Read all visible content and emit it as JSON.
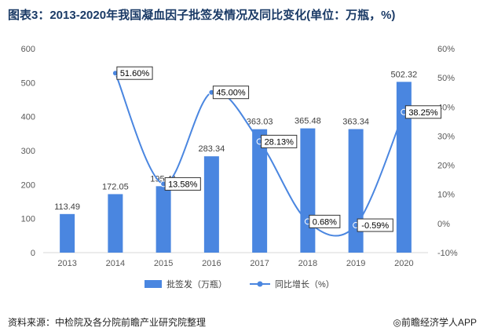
{
  "title": "图表3：2013-2020年我国凝血因子批签发情况及同比变化(单位：万瓶，%)",
  "source": "资料来源：中检院及各分院前瞻产业研究院整理",
  "brand": "前瞻经济学人APP",
  "colors": {
    "bar": "#4a86e0",
    "line": "#4a86e0",
    "title": "#1a3a66"
  },
  "chart_data": {
    "type": "bar",
    "categories": [
      "2013",
      "2014",
      "2015",
      "2016",
      "2017",
      "2018",
      "2019",
      "2020"
    ],
    "series": [
      {
        "name": "批签发（万瓶）",
        "type": "bar",
        "axis": "left",
        "values": [
          113.49,
          172.05,
          195.41,
          283.34,
          363.03,
          365.48,
          363.34,
          502.32
        ]
      },
      {
        "name": "同比增长（%）",
        "type": "line",
        "axis": "right",
        "values": [
          null,
          51.6,
          13.58,
          45.0,
          28.13,
          0.68,
          -0.59,
          38.25
        ]
      }
    ],
    "value_labels": [
      "113.49",
      "172.05",
      "195.41",
      "283.34",
      "363.03",
      "365.48",
      "363.34",
      "502.32"
    ],
    "pct_labels": [
      null,
      "51.60%",
      "13.58%",
      "45.00%",
      "28.13%",
      "0.68%",
      "-0.59%",
      "38.25%"
    ],
    "y_left": {
      "min": 0,
      "max": 600,
      "ticks": [
        "0",
        "100",
        "200",
        "300",
        "400",
        "500",
        "600"
      ]
    },
    "y_right": {
      "min": -10,
      "max": 60,
      "ticks": [
        "-10%",
        "0%",
        "10%",
        "20%",
        "30%",
        "40%",
        "50%",
        "60%"
      ]
    },
    "grid": false,
    "legend_position": "bottom"
  }
}
